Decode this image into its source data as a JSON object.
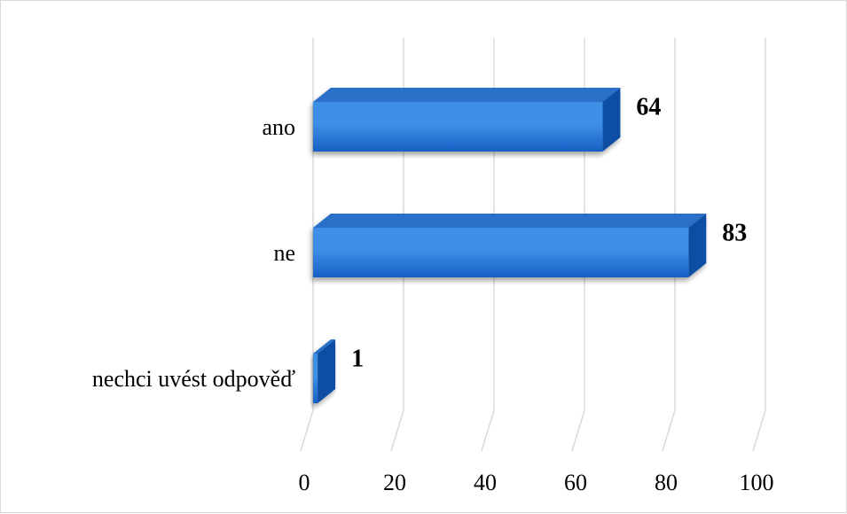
{
  "chart_data": {
    "type": "bar",
    "orientation": "horizontal",
    "style": "3d-clustered-bar",
    "categories": [
      "ano",
      "ne",
      "nechci uvést odpověď"
    ],
    "values": [
      64,
      83,
      1
    ],
    "data_labels": [
      "64",
      "83",
      "1"
    ],
    "xlim": [
      0,
      100
    ],
    "x_ticks": [
      0,
      20,
      40,
      60,
      80,
      100
    ],
    "x_tick_labels": [
      "0",
      "20",
      "40",
      "60",
      "80",
      "100"
    ],
    "grid": true,
    "legend": "none",
    "title": "",
    "xlabel": "",
    "ylabel": "",
    "colors": {
      "bar_front_light": "#3d8fe6",
      "bar_front_dark": "#1760c4",
      "bar_top": "#2a6fc8",
      "bar_side": "#0f4ea3",
      "gridline": "#d9d9d9",
      "frame": "#d9d9d9"
    }
  }
}
